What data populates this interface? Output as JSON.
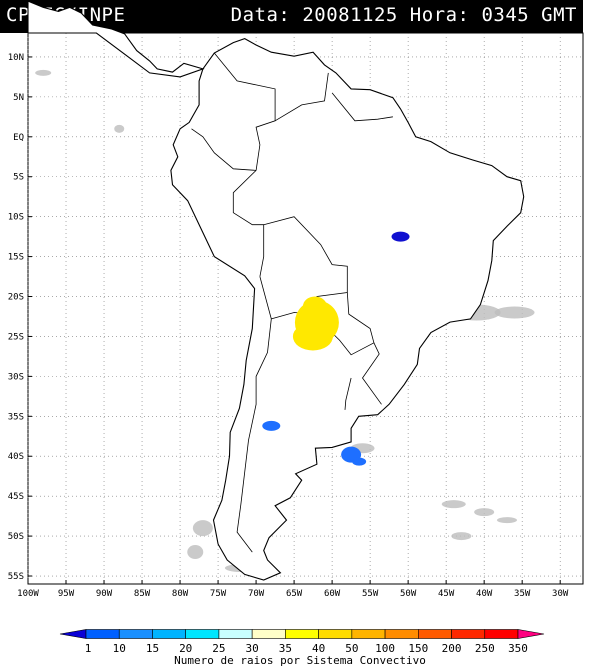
{
  "header": {
    "source": "CPTEC/INPE",
    "data_label": "Data:",
    "date": "20081125",
    "hora_label": "Hora:",
    "time": "0345",
    "tz": "GMT"
  },
  "map": {
    "lon_range": [
      -100,
      -27
    ],
    "lat_range": [
      -56,
      13
    ],
    "lat_ticks": [
      {
        "v": 10,
        "label": "10N"
      },
      {
        "v": 5,
        "label": "5N"
      },
      {
        "v": 0,
        "label": "EQ"
      },
      {
        "v": -5,
        "label": "5S"
      },
      {
        "v": -10,
        "label": "10S"
      },
      {
        "v": -15,
        "label": "15S"
      },
      {
        "v": -20,
        "label": "20S"
      },
      {
        "v": -25,
        "label": "25S"
      },
      {
        "v": -30,
        "label": "30S"
      },
      {
        "v": -35,
        "label": "35S"
      },
      {
        "v": -40,
        "label": "40S"
      },
      {
        "v": -45,
        "label": "45S"
      },
      {
        "v": -50,
        "label": "50S"
      },
      {
        "v": -55,
        "label": "55S"
      }
    ],
    "lon_ticks": [
      {
        "v": -100,
        "label": "100W"
      },
      {
        "v": -95,
        "label": "95W"
      },
      {
        "v": -90,
        "label": "90W"
      },
      {
        "v": -85,
        "label": "85W"
      },
      {
        "v": -80,
        "label": "80W"
      },
      {
        "v": -75,
        "label": "75W"
      },
      {
        "v": -70,
        "label": "70W"
      },
      {
        "v": -65,
        "label": "65W"
      },
      {
        "v": -60,
        "label": "60W"
      },
      {
        "v": -55,
        "label": "55W"
      },
      {
        "v": -50,
        "label": "50W"
      },
      {
        "v": -45,
        "label": "45W"
      },
      {
        "v": -40,
        "label": "40W"
      },
      {
        "v": -35,
        "label": "35W"
      },
      {
        "v": -30,
        "label": "30W"
      }
    ],
    "convective_systems": [
      {
        "lon": -51,
        "lat": -12.5,
        "color": "#1010d0"
      },
      {
        "lon": -62,
        "lat": -23.5,
        "color": "#ffe800"
      },
      {
        "lon": -68,
        "lat": -36.2,
        "color": "#1e6fff"
      },
      {
        "lon": -57.5,
        "lat": -39.8,
        "color": "#1e6fff"
      }
    ]
  },
  "legend": {
    "labels": [
      "1",
      "10",
      "15",
      "20",
      "25",
      "30",
      "35",
      "40",
      "50",
      "100",
      "150",
      "200",
      "250",
      "350"
    ],
    "colors": [
      "#0a00d6",
      "#0060ff",
      "#1a90ff",
      "#00b4ff",
      "#00e6ff",
      "#c8ffff",
      "#ffffc8",
      "#ffff00",
      "#ffdc00",
      "#ffb400",
      "#ff8c00",
      "#ff5a00",
      "#ff2800",
      "#ff0000",
      "#ff0080"
    ],
    "caption": "Numero de raios por Sistema Convectivo"
  }
}
